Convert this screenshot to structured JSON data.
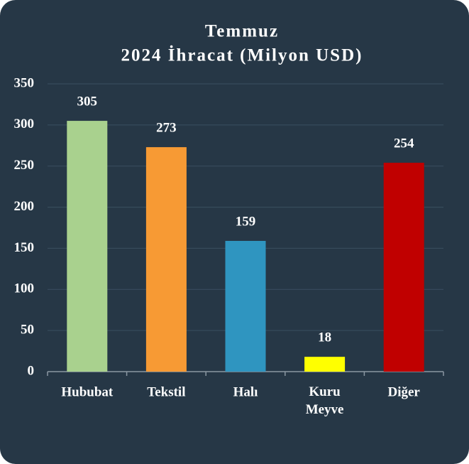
{
  "chart_data": {
    "type": "bar",
    "title": [
      "Temmuz",
      "2024 İhracat (Milyon USD)"
    ],
    "categories": [
      "Hububat",
      "Tekstil",
      "Halı",
      "Kuru Meyve",
      "Diğer"
    ],
    "values": [
      305,
      273,
      159,
      18,
      254
    ],
    "colors": [
      "#a9d18e",
      "#f79a34",
      "#2f95c0",
      "#ffff00",
      "#c00000"
    ],
    "ylim": [
      0,
      350
    ],
    "yticks": [
      0,
      50,
      100,
      150,
      200,
      250,
      300,
      350
    ],
    "grid": true
  }
}
